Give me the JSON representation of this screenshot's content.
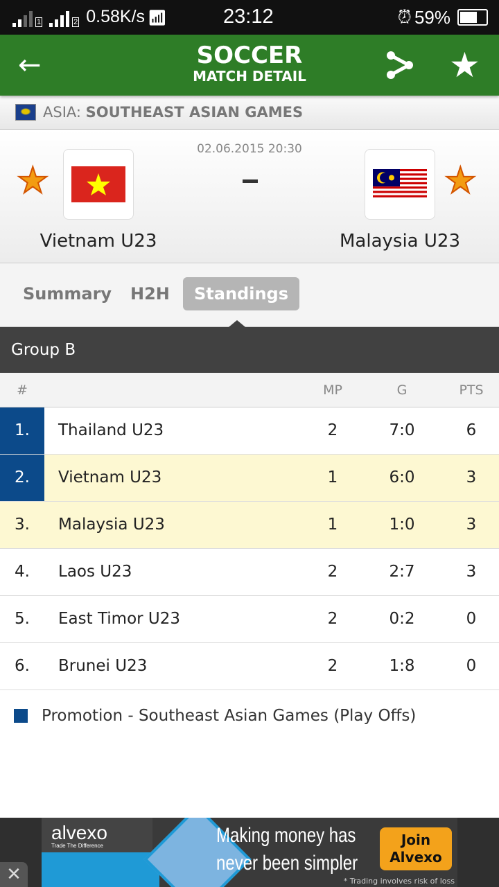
{
  "status": {
    "speed": "0.58K/s",
    "time": "23:12",
    "battery": "59%",
    "battery_level": 0.59,
    "sim1": "1",
    "sim2": "2"
  },
  "header": {
    "title": "SOCCER",
    "subtitle": "MATCH DETAIL"
  },
  "league": {
    "region": "ASIA:",
    "name": "SOUTHEAST ASIAN GAMES"
  },
  "match": {
    "datetime": "02.06.2015 20:30",
    "score": "-",
    "home": "Vietnam U23",
    "away": "Malaysia U23"
  },
  "tabs": [
    {
      "label": "Summary"
    },
    {
      "label": "H2H"
    },
    {
      "label": "Standings",
      "active": true
    }
  ],
  "standings": {
    "group": "Group B",
    "columns": {
      "rank": "#",
      "mp": "MP",
      "g": "G",
      "pts": "PTS"
    },
    "rows": [
      {
        "rank": "1.",
        "team": "Thailand U23",
        "mp": "2",
        "g": "7:0",
        "pts": "6",
        "promotion": true,
        "highlight": false
      },
      {
        "rank": "2.",
        "team": "Vietnam U23",
        "mp": "1",
        "g": "6:0",
        "pts": "3",
        "promotion": true,
        "highlight": true
      },
      {
        "rank": "3.",
        "team": "Malaysia U23",
        "mp": "1",
        "g": "1:0",
        "pts": "3",
        "promotion": false,
        "highlight": true
      },
      {
        "rank": "4.",
        "team": "Laos U23",
        "mp": "2",
        "g": "2:7",
        "pts": "3",
        "promotion": false,
        "highlight": false
      },
      {
        "rank": "5.",
        "team": "East Timor U23",
        "mp": "2",
        "g": "0:2",
        "pts": "0",
        "promotion": false,
        "highlight": false
      },
      {
        "rank": "6.",
        "team": "Brunei U23",
        "mp": "2",
        "g": "1:8",
        "pts": "0",
        "promotion": false,
        "highlight": false
      }
    ],
    "legend": "Promotion - Southeast Asian Games (Play Offs)",
    "promotion_color": "#0c4a8a",
    "highlight_color": "#fdf8d2"
  },
  "ad": {
    "brand": "alvexo",
    "tagline": "Trade The Difference",
    "line1": "Making money has",
    "line2": "never been simpler",
    "cta_line1": "Join",
    "cta_line2": "Alvexo",
    "disclaimer": "* Trading involves risk of loss",
    "close": "✕"
  },
  "colors": {
    "header": "#2e7d27"
  }
}
